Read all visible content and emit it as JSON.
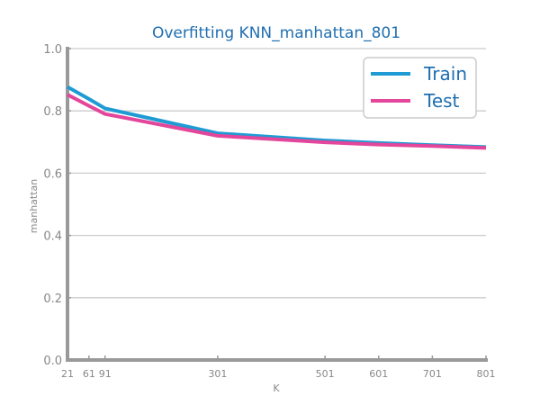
{
  "colors": {
    "title": "#1f6fb0",
    "train": "#1f9bd4",
    "test": "#e3469a",
    "grid": "#cccccc",
    "axis": "#999999",
    "legend_text": "#1f6fb0"
  },
  "chart_data": {
    "type": "line",
    "title": "Overfitting KNN_manhattan_801",
    "xlabel": "K",
    "ylabel": "manhattan",
    "x": [
      21,
      61,
      91,
      301,
      501,
      601,
      701,
      801
    ],
    "x_tick_labels": [
      "21",
      "61",
      "91",
      "301",
      "501",
      "601",
      "701",
      "801"
    ],
    "xlim": [
      21,
      801
    ],
    "ylim": [
      0.0,
      1.0
    ],
    "y_ticks": [
      0.0,
      0.2,
      0.4,
      0.6,
      0.8,
      1.0
    ],
    "y_tick_labels": [
      "0.0",
      "0.2",
      "0.4",
      "0.6",
      "0.8",
      "1.0"
    ],
    "grid": true,
    "legend_position": "top-right",
    "series": [
      {
        "name": "Train",
        "color": "#1f9bd4",
        "values": [
          0.877,
          0.838,
          0.808,
          0.728,
          0.705,
          0.697,
          0.69,
          0.684
        ]
      },
      {
        "name": "Test",
        "color": "#e3469a",
        "values": [
          0.852,
          0.816,
          0.79,
          0.72,
          0.699,
          0.692,
          0.687,
          0.681
        ]
      }
    ]
  }
}
